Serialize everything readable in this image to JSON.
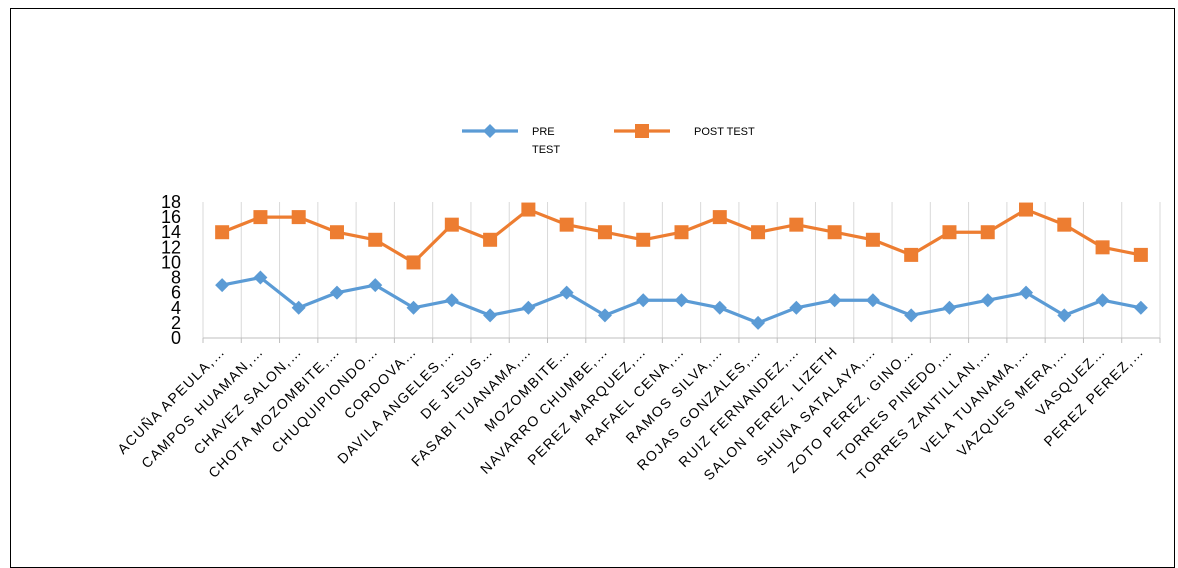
{
  "chart_data": {
    "type": "line",
    "categories": [
      "ACUÑA APEULA,…",
      "CAMPOS HUAMAN,…",
      "CHAVEZ SALON,…",
      "CHOTA MOZOMBITE,…",
      "CHUQUIPIONDO…",
      "CORDOVA…",
      "DAVILA ANGELES,…",
      "DE JESUS…",
      "FASABI TUANAMA,…",
      "MOZOMBITE…",
      "NAVARRO CHUMBE,…",
      "PEREZ MARQUEZ,…",
      "RAFAEL CENA,…",
      "RAMOS SILVA,…",
      "ROJAS GONZALES,…",
      "RUIZ FERNANDEZ,…",
      "SALON PEREZ, LIZETH",
      "SHUÑA SATALAYA,…",
      "ZOTO PEREZ, GINO…",
      "TORRES PINEDO,…",
      "TORRES ZANTILLAN,…",
      "VELA TUANAMA,…",
      "VAZQUES MERA,…",
      "VASQUEZ…",
      "PEREZ PEREZ,…"
    ],
    "series": [
      {
        "name": "PRE TEST",
        "legend_lines": [
          "PRE",
          "TEST"
        ],
        "color": "#5B9BD5",
        "marker": "diamond",
        "values": [
          7,
          8,
          4,
          6,
          7,
          4,
          5,
          3,
          4,
          6,
          3,
          5,
          5,
          4,
          2,
          4,
          5,
          5,
          3,
          4,
          5,
          6,
          3,
          5,
          4
        ]
      },
      {
        "name": "POST TEST",
        "legend_lines": [
          "POST TEST"
        ],
        "color": "#ED7D31",
        "marker": "square",
        "values": [
          14,
          16,
          16,
          14,
          13,
          10,
          15,
          13,
          17,
          15,
          14,
          13,
          14,
          16,
          14,
          15,
          14,
          13,
          11,
          14,
          14,
          17,
          15,
          12,
          11
        ]
      }
    ],
    "yticks": [
      "0",
      "2",
      "4",
      "6",
      "8",
      "10",
      "12",
      "14",
      "16",
      "18"
    ],
    "ylim": [
      0,
      18
    ],
    "grid": "vertical",
    "legend": "top-center",
    "title": "",
    "xlabel": "",
    "ylabel": ""
  }
}
